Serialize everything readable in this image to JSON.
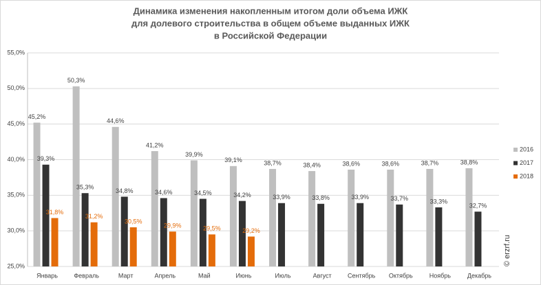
{
  "chart_data": {
    "type": "bar",
    "title": [
      "Динамика изменения накопленным итогом доли объема ИЖК",
      "для долевого строительства  в общем объеме выданных ИЖК",
      "в Российской  Федерации"
    ],
    "categories": [
      "Январь",
      "Февраль",
      "Март",
      "Апрель",
      "Май",
      "Июнь",
      "Июль",
      "Август",
      "Сентябрь",
      "Октябрь",
      "Ноябрь",
      "Декабрь"
    ],
    "series": [
      {
        "name": "2016",
        "color": "#bfbfbf",
        "label_color": "#404040",
        "values": [
          45.2,
          50.3,
          44.6,
          41.2,
          39.9,
          39.1,
          38.7,
          38.4,
          38.6,
          38.6,
          38.7,
          38.8
        ],
        "value_labels": [
          "45,2%",
          "50,3%",
          "44,6%",
          "41,2%",
          "39,9%",
          "39,1%",
          "38,7%",
          "38,4%",
          "38,6%",
          "38,6%",
          "38,7%",
          "38,8%"
        ]
      },
      {
        "name": "2017",
        "color": "#333333",
        "label_color": "#404040",
        "values": [
          39.3,
          35.3,
          34.8,
          34.6,
          34.5,
          34.2,
          33.9,
          33.8,
          33.9,
          33.7,
          33.3,
          32.7
        ],
        "value_labels": [
          "39,3%",
          "35,3%",
          "34,8%",
          "34,6%",
          "34,5%",
          "34,2%",
          "33,9%",
          "33,8%",
          "33,9%",
          "33,7%",
          "33,3%",
          "32,7%"
        ]
      },
      {
        "name": "2018",
        "color": "#e46c0a",
        "label_color": "#e46c0a",
        "values": [
          31.8,
          31.2,
          30.5,
          29.9,
          29.5,
          29.2,
          null,
          null,
          null,
          null,
          null,
          null
        ],
        "value_labels": [
          "31,8%",
          "31,2%",
          "30,5%",
          "29,9%",
          "29,5%",
          "29,2%",
          null,
          null,
          null,
          null,
          null,
          null
        ]
      }
    ],
    "ylim": [
      25,
      55
    ],
    "yticks": [
      {
        "value": 25,
        "label": "25,0%"
      },
      {
        "value": 30,
        "label": "30,0%"
      },
      {
        "value": 35,
        "label": "35,0%"
      },
      {
        "value": 40,
        "label": "40,0%"
      },
      {
        "value": 45,
        "label": "45,0%"
      },
      {
        "value": 50,
        "label": "50,0%"
      },
      {
        "value": 55,
        "label": "55,0%"
      }
    ],
    "grid": true,
    "legend": "right",
    "watermark": "© erzrf.ru"
  }
}
